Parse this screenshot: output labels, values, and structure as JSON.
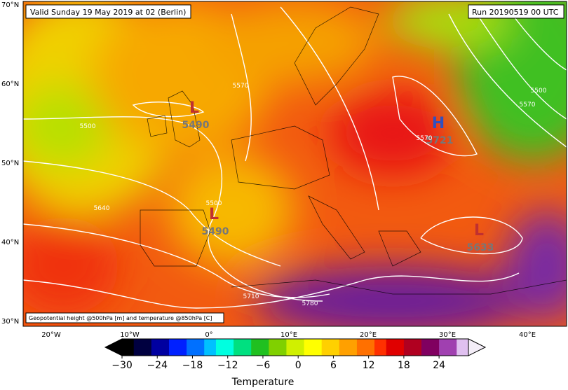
{
  "header": {
    "valid": "Valid Sunday 19 May 2019 at 02 (Berlin)",
    "run": "Run 20190519 00 UTC"
  },
  "footer_note": "Geopotential height @500hPa [m] and temperature @850hPa [C]",
  "lat_labels": [
    "70°N",
    "60°N",
    "50°N",
    "40°N",
    "30°N"
  ],
  "lon_labels": [
    "20°W",
    "10°W",
    "0°",
    "10°E",
    "20°E",
    "30°E",
    "40°E"
  ],
  "centers": [
    {
      "letter": "L",
      "value": 5490
    },
    {
      "letter": "L",
      "value": 5490
    },
    {
      "letter": "H",
      "value": 5721
    },
    {
      "letter": "L",
      "value": 5633
    }
  ],
  "contour_labels": [
    5500,
    5570,
    5640,
    5710,
    5780,
    5500,
    5570,
    5500,
    5570
  ],
  "colorbar": {
    "label": "Temperature",
    "lim": [
      -30,
      29
    ],
    "ticks": [
      {
        "value": -30,
        "label": "−30"
      },
      {
        "value": -24,
        "label": "−24"
      },
      {
        "value": -18,
        "label": "−18"
      },
      {
        "value": -12,
        "label": "−12"
      },
      {
        "value": -6,
        "label": "−6"
      },
      0,
      6,
      12,
      18,
      24
    ]
  }
}
